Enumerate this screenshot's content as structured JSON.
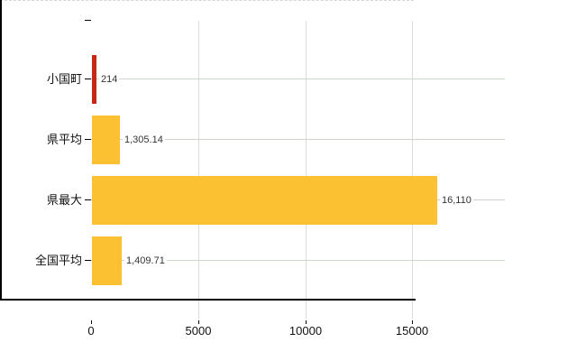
{
  "chart_data": {
    "type": "bar",
    "orientation": "horizontal",
    "title": "",
    "categories": [
      "小国町",
      "県平均",
      "県最大",
      "全国平均"
    ],
    "values": [
      214,
      1305.14,
      16110,
      1409.71
    ],
    "value_labels": [
      "214",
      "1,305.14",
      "16,110",
      "1,409.71"
    ],
    "bar_colors": [
      "#c62817",
      "#fcc133",
      "#fcc133",
      "#fcc133"
    ],
    "x_ticks": [
      0,
      5000,
      10000,
      15000
    ],
    "x_tick_labels": [
      "0",
      "5000",
      "10000",
      "15000"
    ],
    "xlim": [
      0,
      19320
    ],
    "grid": true,
    "legend": false
  },
  "styles": {
    "bar_highlight_color": "#c62817",
    "bar_default_color": "#fcc133",
    "axis_color": "#000000",
    "grid_h_color": "#ccd8cc",
    "grid_v_color": "#dcdcdc",
    "top_border_color": "#d6d6d6",
    "category_label_color": "#111111",
    "tick_label_color": "#111111",
    "value_label_color": "#333333",
    "background_color": "#ffffff"
  }
}
